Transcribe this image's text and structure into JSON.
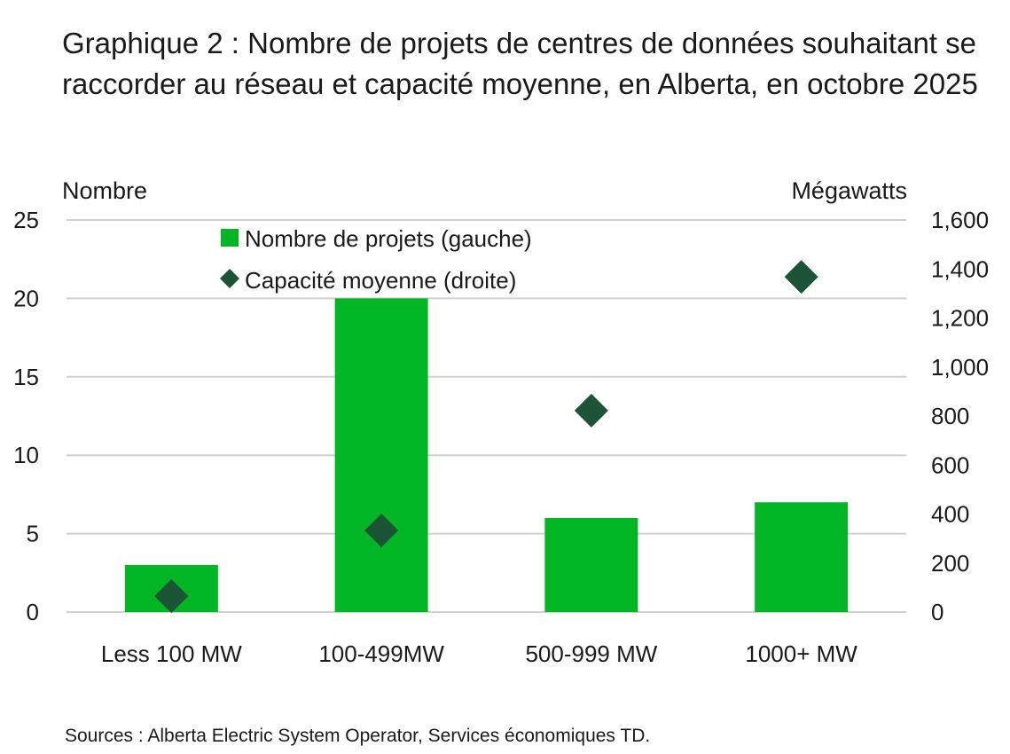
{
  "chart_data": {
    "type": "bar",
    "title": "Graphique 2 : Nombre de projets de centres de données souhaitant se raccorder au réseau et capacité moyenne, en Alberta, en octobre 2025",
    "ylabel": "Nombre",
    "y2label": "Mégawatts",
    "categories": [
      "Less 100 MW",
      "100-499MW",
      "500-999 MW",
      "1000+ MW"
    ],
    "ylim": [
      0,
      25
    ],
    "yticks": [
      "0",
      "5",
      "10",
      "15",
      "20",
      "25"
    ],
    "y2lim": [
      0,
      1600
    ],
    "y2ticks": [
      "0",
      "200",
      "400",
      "600",
      "800",
      "1,000",
      "1,200",
      "1,400",
      "1,600"
    ],
    "grid": true,
    "legend_placement": "top-center",
    "series": [
      {
        "name": "Nombre de projets (gauche)",
        "type": "bar",
        "axis": "left",
        "color": "#00b624",
        "values": [
          3,
          20,
          6,
          7
        ]
      },
      {
        "name": "Capacité moyenne (droite)",
        "type": "scatter",
        "marker": "diamond",
        "axis": "right",
        "color": "#1d5336",
        "values": [
          65,
          333,
          822,
          1368
        ]
      }
    ]
  },
  "source": "Sources : Alberta Electric System Operator, Services économiques TD."
}
